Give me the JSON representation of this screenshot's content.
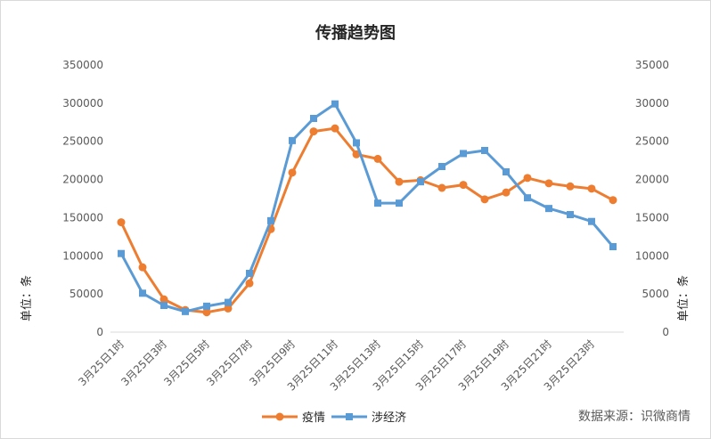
{
  "chart_data": {
    "type": "line",
    "title": "传播趋势图",
    "source": "数据来源：识微商情",
    "y_left_label": "单位：条",
    "y_right_label": "单位：条",
    "y_left_ticks": [
      "0",
      "50000",
      "100000",
      "150000",
      "200000",
      "250000",
      "300000",
      "350000"
    ],
    "y_right_ticks": [
      "0",
      "5000",
      "10000",
      "15000",
      "20000",
      "25000",
      "30000",
      "35000"
    ],
    "y_left_range": [
      0,
      350000
    ],
    "y_right_range": [
      0,
      35000
    ],
    "x_tick_labels": [
      "3月25日1时",
      "3月25日3时",
      "3月25日5时",
      "3月25日7时",
      "3月25日9时",
      "3月25日11时",
      "3月25日13时",
      "3月25日15时",
      "3月25日17时",
      "3月25日19时",
      "3月25日21时",
      "3月25日23时"
    ],
    "categories": [
      "3月25日1时",
      "3月25日2时",
      "3月25日3时",
      "3月25日4时",
      "3月25日5时",
      "3月25日6时",
      "3月25日7时",
      "3月25日8时",
      "3月25日9时",
      "3月25日10时",
      "3月25日11时",
      "3月25日12时",
      "3月25日13时",
      "3月25日14时",
      "3月25日15时",
      "3月25日16时",
      "3月25日17时",
      "3月25日18时",
      "3月25日19时",
      "3月25日20时",
      "3月25日21时",
      "3月25日22时",
      "3月25日23时",
      "3月25日24时"
    ],
    "series": [
      {
        "name": "疫情",
        "axis": "left",
        "color": "#ED7D31",
        "marker": "circle",
        "values": [
          144000,
          85000,
          43000,
          29000,
          26000,
          31000,
          64000,
          135000,
          209000,
          263000,
          267000,
          233000,
          227000,
          197000,
          199000,
          189000,
          193000,
          174000,
          183000,
          202000,
          195000,
          191000,
          188000,
          173000
        ]
      },
      {
        "name": "涉经济",
        "axis": "right",
        "color": "#5B9BD5",
        "marker": "square",
        "values": [
          10300,
          5100,
          3500,
          2700,
          3400,
          3900,
          7700,
          14600,
          25100,
          28000,
          29900,
          24800,
          16900,
          16900,
          19700,
          21700,
          23400,
          23800,
          21000,
          17600,
          16200,
          15400,
          14500,
          11200
        ]
      }
    ],
    "grid": false,
    "legend_position": "bottom"
  }
}
